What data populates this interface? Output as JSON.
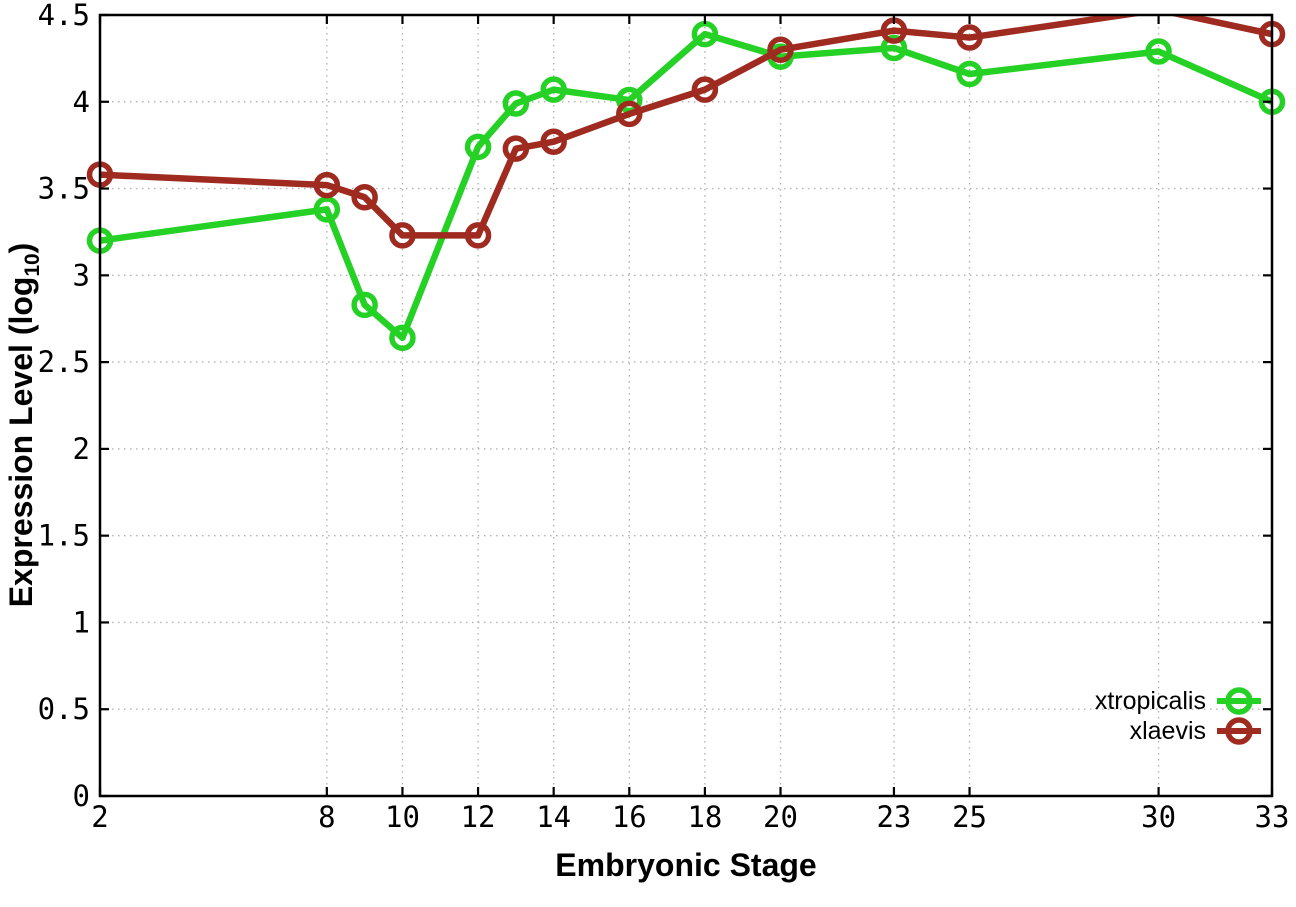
{
  "chart_data": {
    "type": "line",
    "title": "",
    "xlabel": "Embryonic Stage",
    "ylabel": {
      "pre": "Expression Level (log",
      "sub": "10",
      "post": ")"
    },
    "x": [
      2,
      8,
      9,
      10,
      12,
      13,
      14,
      16,
      18,
      20,
      23,
      25,
      30,
      33
    ],
    "series": [
      {
        "name": "xtropicalis",
        "color": "#24d124",
        "values": [
          3.2,
          3.38,
          2.83,
          2.64,
          3.74,
          3.99,
          4.07,
          4.01,
          4.39,
          4.26,
          4.31,
          4.16,
          4.29,
          4.0
        ]
      },
      {
        "name": "xlaevis",
        "color": "#9e2a20",
        "values": [
          3.58,
          3.52,
          3.45,
          3.23,
          3.23,
          3.73,
          3.77,
          3.93,
          4.07,
          4.3,
          4.41,
          4.37,
          4.53,
          4.39
        ]
      }
    ],
    "x_tick_values": [
      2,
      8,
      10,
      12,
      14,
      16,
      18,
      20,
      23,
      25,
      30,
      33
    ],
    "x_tick_labels": [
      "2",
      "8",
      "10",
      "12",
      "14",
      "16",
      "18",
      "20",
      "23",
      "25",
      "30",
      "33"
    ],
    "y_tick_values": [
      0,
      0.5,
      1,
      1.5,
      2,
      2.5,
      3,
      3.5,
      4,
      4.5
    ],
    "y_tick_labels": [
      "0",
      "0.5",
      "1",
      "1.5",
      "2",
      "2.5",
      "3",
      "3.5",
      "4",
      "4.5"
    ],
    "xlim": [
      2,
      33
    ],
    "ylim": [
      0,
      4.5
    ],
    "grid": true,
    "grid_style": "dotted",
    "grid_color": "#b3b3b3",
    "axis_color": "#000000",
    "marker_style": "open-circle",
    "legend_position": "bottom-right",
    "clip_note": "xlaevis line exceeds y=4.5 between stages 25 and 33 and is clipped at the top border; its stage-30 marker is not drawn"
  }
}
